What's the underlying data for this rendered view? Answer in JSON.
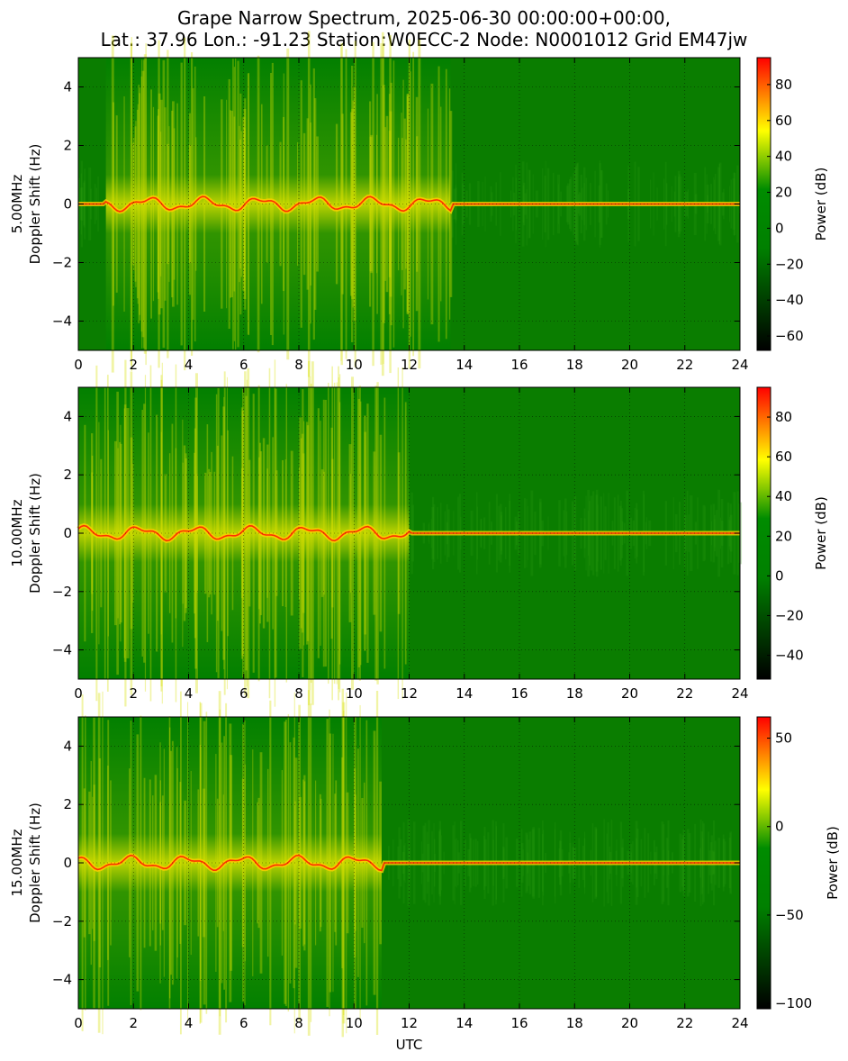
{
  "title": {
    "line1": "Grape Narrow Spectrum, 2025-06-30 00:00:00+00:00,",
    "line2": "Lat.: 37.96 Lon.: -91.23 Station:W0ECC-2 Node: N0001012 Grid EM47jw"
  },
  "chart_data": [
    {
      "type": "heatmap",
      "ylabel_line1": "5.00MHz",
      "ylabel_line2": "Doppler Shift (Hz)",
      "xlabel": "",
      "xlim": [
        0,
        24
      ],
      "ylim": [
        -5,
        5
      ],
      "xticks": [
        0,
        2,
        4,
        6,
        8,
        10,
        12,
        14,
        16,
        18,
        20,
        22,
        24
      ],
      "yticks": [
        -4,
        -2,
        0,
        2,
        4
      ],
      "grid": true,
      "colorbar": {
        "label": "Power (dB)",
        "range": [
          -68,
          95
        ],
        "ticks": [
          -60,
          -40,
          -20,
          0,
          20,
          40,
          60,
          80
        ]
      },
      "carrier_end_utc": 24,
      "daytime_spread_utc": [
        1,
        13.5
      ],
      "colors": {
        "low": "#000000",
        "mid": "#008000",
        "high1": "#ffff00",
        "high2": "#ff0000"
      }
    },
    {
      "type": "heatmap",
      "ylabel_line1": "10.00MHz",
      "ylabel_line2": "Doppler Shift (Hz)",
      "xlabel": "",
      "xlim": [
        0,
        24
      ],
      "ylim": [
        -5,
        5
      ],
      "xticks": [
        0,
        2,
        4,
        6,
        8,
        10,
        12,
        14,
        16,
        18,
        20,
        22,
        24
      ],
      "yticks": [
        -4,
        -2,
        0,
        2,
        4
      ],
      "grid": true,
      "colorbar": {
        "label": "Power (dB)",
        "range": [
          -52,
          95
        ],
        "ticks": [
          -40,
          -20,
          0,
          20,
          40,
          60,
          80
        ]
      },
      "carrier_end_utc": 24,
      "daytime_spread_utc": [
        0,
        12
      ],
      "colors": {
        "low": "#000000",
        "mid": "#008000",
        "high1": "#ffff00",
        "high2": "#ff0000"
      }
    },
    {
      "type": "heatmap",
      "ylabel_line1": "15.00MHz",
      "ylabel_line2": "Doppler Shift (Hz)",
      "xlabel": "UTC",
      "xlim": [
        0,
        24
      ],
      "ylim": [
        -5,
        5
      ],
      "xticks": [
        0,
        2,
        4,
        6,
        8,
        10,
        12,
        14,
        16,
        18,
        20,
        22,
        24
      ],
      "yticks": [
        -4,
        -2,
        0,
        2,
        4
      ],
      "grid": true,
      "colorbar": {
        "label": "Power (dB)",
        "range": [
          -103,
          62
        ],
        "ticks": [
          -100,
          -50,
          0,
          50
        ]
      },
      "carrier_end_utc": 24,
      "daytime_spread_utc": [
        0,
        11
      ],
      "colors": {
        "low": "#000000",
        "mid": "#008000",
        "high1": "#ffff00",
        "high2": "#ff0000"
      }
    }
  ]
}
